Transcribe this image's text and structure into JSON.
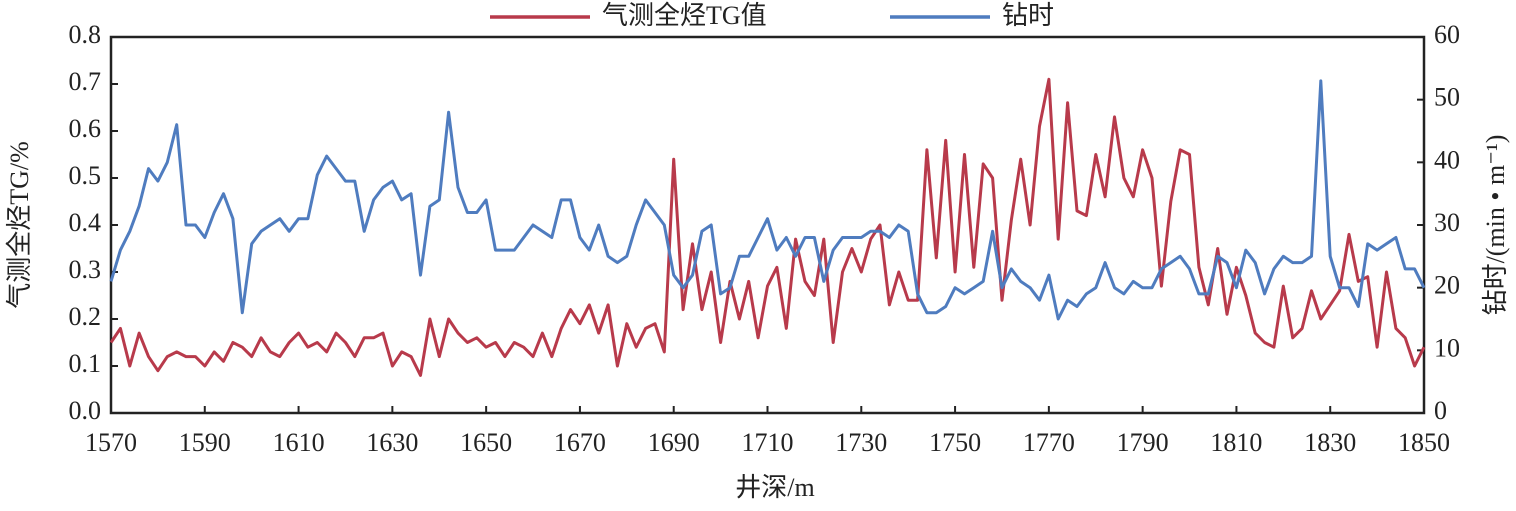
{
  "chart_data": {
    "type": "line",
    "xlabel": "井深/m",
    "ylabel": "气测全烃TG/%",
    "y2label": "钻时/(min • m⁻¹)",
    "legend": "top",
    "x": [
      1570,
      1572,
      1574,
      1576,
      1578,
      1580,
      1582,
      1584,
      1586,
      1588,
      1590,
      1592,
      1594,
      1596,
      1598,
      1600,
      1602,
      1604,
      1606,
      1608,
      1610,
      1612,
      1614,
      1616,
      1618,
      1620,
      1622,
      1624,
      1626,
      1628,
      1630,
      1632,
      1634,
      1636,
      1638,
      1640,
      1642,
      1644,
      1646,
      1648,
      1650,
      1652,
      1654,
      1656,
      1658,
      1660,
      1662,
      1664,
      1666,
      1668,
      1670,
      1672,
      1674,
      1676,
      1678,
      1680,
      1682,
      1684,
      1686,
      1688,
      1690,
      1692,
      1694,
      1696,
      1698,
      1700,
      1702,
      1704,
      1706,
      1708,
      1710,
      1712,
      1714,
      1716,
      1718,
      1720,
      1722,
      1724,
      1726,
      1728,
      1730,
      1732,
      1734,
      1736,
      1738,
      1740,
      1742,
      1744,
      1746,
      1748,
      1750,
      1752,
      1754,
      1756,
      1758,
      1760,
      1762,
      1764,
      1766,
      1768,
      1770,
      1772,
      1774,
      1776,
      1778,
      1780,
      1782,
      1784,
      1786,
      1788,
      1790,
      1792,
      1794,
      1796,
      1798,
      1800,
      1802,
      1804,
      1806,
      1808,
      1810,
      1812,
      1814,
      1816,
      1818,
      1820,
      1822,
      1824,
      1826,
      1828,
      1830,
      1832,
      1834,
      1836,
      1838,
      1840,
      1842,
      1844,
      1846,
      1848,
      1850
    ],
    "series": [
      {
        "name": "气测全烃TG值",
        "color": "#b83a4b",
        "values": [
          0.15,
          0.18,
          0.1,
          0.17,
          0.12,
          0.09,
          0.12,
          0.13,
          0.12,
          0.12,
          0.1,
          0.13,
          0.11,
          0.15,
          0.14,
          0.12,
          0.16,
          0.13,
          0.12,
          0.15,
          0.17,
          0.14,
          0.15,
          0.13,
          0.17,
          0.15,
          0.12,
          0.16,
          0.16,
          0.17,
          0.1,
          0.13,
          0.12,
          0.08,
          0.2,
          0.12,
          0.2,
          0.17,
          0.15,
          0.16,
          0.14,
          0.15,
          0.12,
          0.15,
          0.14,
          0.12,
          0.17,
          0.12,
          0.18,
          0.22,
          0.19,
          0.23,
          0.17,
          0.23,
          0.1,
          0.19,
          0.14,
          0.18,
          0.19,
          0.13,
          0.54,
          0.22,
          0.36,
          0.22,
          0.3,
          0.15,
          0.28,
          0.2,
          0.28,
          0.16,
          0.27,
          0.31,
          0.18,
          0.37,
          0.28,
          0.25,
          0.37,
          0.15,
          0.3,
          0.35,
          0.3,
          0.37,
          0.4,
          0.23,
          0.3,
          0.24,
          0.24,
          0.56,
          0.33,
          0.58,
          0.3,
          0.55,
          0.31,
          0.53,
          0.5,
          0.24,
          0.41,
          0.54,
          0.4,
          0.61,
          0.71,
          0.37,
          0.66,
          0.43,
          0.42,
          0.55,
          0.46,
          0.63,
          0.5,
          0.46,
          0.56,
          0.5,
          0.27,
          0.45,
          0.56,
          0.55,
          0.31,
          0.23,
          0.35,
          0.21,
          0.31,
          0.25,
          0.17,
          0.15,
          0.14,
          0.27,
          0.16,
          0.18,
          0.26,
          0.2,
          0.23,
          0.26,
          0.38,
          0.28,
          0.29,
          0.14,
          0.3,
          0.18,
          0.16,
          0.1,
          0.14
        ]
      },
      {
        "name": "钻时",
        "color": "#4f7cbf",
        "axis": "y2",
        "values": [
          21,
          26,
          29,
          33,
          39,
          37,
          40,
          46,
          30,
          30,
          28,
          32,
          35,
          31,
          16,
          27,
          29,
          30,
          31,
          29,
          31,
          31,
          38,
          41,
          39,
          37,
          37,
          29,
          34,
          36,
          37,
          34,
          35,
          22,
          33,
          34,
          48,
          36,
          32,
          32,
          34,
          26,
          26,
          26,
          28,
          30,
          29,
          28,
          34,
          34,
          28,
          26,
          30,
          25,
          24,
          25,
          30,
          34,
          32,
          30,
          22,
          20,
          22,
          29,
          30,
          19,
          20,
          25,
          25,
          28,
          31,
          26,
          28,
          25,
          28,
          28,
          21,
          26,
          28,
          28,
          28,
          29,
          29,
          28,
          30,
          29,
          19,
          16,
          16,
          17,
          20,
          19,
          20,
          21,
          29,
          20,
          23,
          21,
          20,
          18,
          22,
          15,
          18,
          17,
          19,
          20,
          24,
          20,
          19,
          21,
          20,
          20,
          23,
          24,
          25,
          23,
          19,
          19,
          25,
          24,
          20,
          26,
          24,
          19,
          23,
          25,
          24,
          24,
          25,
          53,
          25,
          20,
          20,
          17,
          27,
          26,
          27,
          28,
          23,
          23,
          20
        ]
      }
    ],
    "xlim": [
      1570,
      1850
    ],
    "xticks": [
      1570,
      1590,
      1610,
      1630,
      1650,
      1670,
      1690,
      1710,
      1730,
      1750,
      1770,
      1790,
      1810,
      1830,
      1850
    ],
    "ylim": [
      0,
      0.8
    ],
    "yticks": [
      {
        "value": 0,
        "label": "0.0"
      },
      0.1,
      0.2,
      0.3,
      0.4,
      0.5,
      0.6,
      0.7,
      0.8
    ],
    "y2lim": [
      0,
      60
    ],
    "y2ticks": [
      0,
      10,
      20,
      30,
      40,
      50,
      60
    ]
  }
}
